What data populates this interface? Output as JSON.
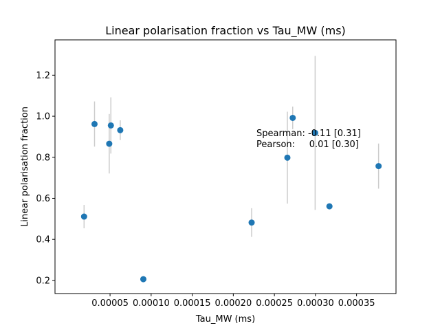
{
  "chart_data": {
    "type": "scatter",
    "title": "Linear polarisation fraction vs Tau_MW (ms)",
    "xlabel": "Tau_MW (ms)",
    "ylabel": "Linear polarisation fraction",
    "xlim": [
      -1.7e-05,
      0.000398
    ],
    "ylim": [
      0.136,
      1.372
    ],
    "xticks": [
      5e-05,
      0.0001,
      0.00015,
      0.0002,
      0.00025,
      0.0003,
      0.00035
    ],
    "xtick_labels": [
      "0.00005",
      "0.00010",
      "0.00015",
      "0.00020",
      "0.00025",
      "0.00030",
      "0.00035"
    ],
    "yticks": [
      0.2,
      0.4,
      0.6,
      0.8,
      1.0,
      1.2
    ],
    "ytick_labels": [
      "0.2",
      "0.4",
      "0.6",
      "0.8",
      "1.0",
      "1.2"
    ],
    "grid": false,
    "marker_color": "#1f77b4",
    "errorbar_color": "#cccccc",
    "points": [
      {
        "x": 1.84e-05,
        "y": 0.511,
        "yerr_low": 0.057,
        "yerr_high": 0.057
      },
      {
        "x": 3.11e-05,
        "y": 0.962,
        "yerr_low": 0.11,
        "yerr_high": 0.11
      },
      {
        "x": 4.9e-05,
        "y": 0.866,
        "yerr_low": 0.145,
        "yerr_high": 0.145
      },
      {
        "x": 5.1e-05,
        "y": 0.955,
        "yerr_low": 0.137,
        "yerr_high": 0.137
      },
      {
        "x": 6.24e-05,
        "y": 0.932,
        "yerr_low": 0.048,
        "yerr_high": 0.048
      },
      {
        "x": 9.05e-05,
        "y": 0.206,
        "yerr_low": 0.012,
        "yerr_high": 0.012
      },
      {
        "x": 0.0002223,
        "y": 0.482,
        "yerr_low": 0.07,
        "yerr_high": 0.07
      },
      {
        "x": 0.0002658,
        "y": 0.798,
        "yerr_low": 0.224,
        "yerr_high": 0.224
      },
      {
        "x": 0.0002723,
        "y": 0.992,
        "yerr_low": 0.055,
        "yerr_high": 0.055
      },
      {
        "x": 0.0002996,
        "y": 0.919,
        "yerr_low": 0.375,
        "yerr_high": 0.375
      },
      {
        "x": 0.000317,
        "y": 0.561,
        "yerr_low": 0.0,
        "yerr_high": 0.0
      },
      {
        "x": 0.0003768,
        "y": 0.757,
        "yerr_low": 0.11,
        "yerr_high": 0.11
      }
    ],
    "annotations": [
      "Spearman: -0.11 [0.31]",
      "Pearson:     0.01 [0.30]"
    ]
  }
}
